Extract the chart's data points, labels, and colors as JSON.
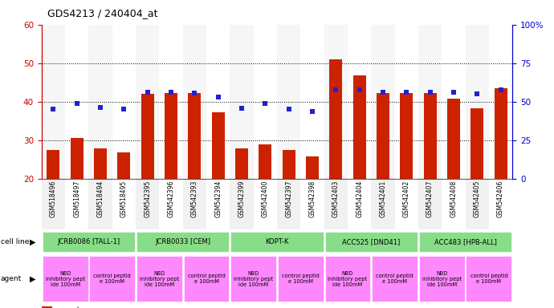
{
  "title": "GDS4213 / 240404_at",
  "samples": [
    "GSM518496",
    "GSM518497",
    "GSM518494",
    "GSM518495",
    "GSM542395",
    "GSM542396",
    "GSM542393",
    "GSM542394",
    "GSM542399",
    "GSM542400",
    "GSM542397",
    "GSM542398",
    "GSM542403",
    "GSM542404",
    "GSM542401",
    "GSM542402",
    "GSM542407",
    "GSM542408",
    "GSM542405",
    "GSM542406"
  ],
  "counts": [
    27.5,
    30.5,
    27.8,
    26.8,
    42.0,
    42.2,
    42.2,
    37.2,
    27.8,
    29.0,
    27.5,
    25.8,
    51.0,
    46.8,
    42.2,
    42.2,
    42.2,
    40.8,
    38.2,
    43.5
  ],
  "percentiles": [
    38.0,
    39.5,
    38.5,
    38.0,
    42.5,
    42.5,
    42.2,
    41.2,
    38.2,
    39.5,
    38.0,
    37.5,
    43.0,
    43.0,
    42.5,
    42.5,
    42.5,
    42.5,
    42.0,
    43.0
  ],
  "bar_color": "#cc2200",
  "dot_color": "#2222cc",
  "ylim_left": [
    20,
    60
  ],
  "ylim_right": [
    0,
    100
  ],
  "yticks_left": [
    20,
    30,
    40,
    50,
    60
  ],
  "yticks_right": [
    0,
    25,
    50,
    75,
    100
  ],
  "ytick_labels_right": [
    "0",
    "25",
    "50",
    "75",
    "100%"
  ],
  "cell_lines": [
    {
      "label": "JCRB0086 [TALL-1]",
      "start": 0,
      "end": 4,
      "color": "#88dd88"
    },
    {
      "label": "JCRB0033 [CEM]",
      "start": 4,
      "end": 8,
      "color": "#88dd88"
    },
    {
      "label": "KOPT-K",
      "start": 8,
      "end": 12,
      "color": "#88dd88"
    },
    {
      "label": "ACC525 [DND41]",
      "start": 12,
      "end": 16,
      "color": "#88dd88"
    },
    {
      "label": "ACC483 [HPB-ALL]",
      "start": 16,
      "end": 20,
      "color": "#88dd88"
    }
  ],
  "agents": [
    {
      "label": "NBD\ninhibitory pept\nide 100mM",
      "start": 0,
      "end": 2,
      "color": "#ff88ff"
    },
    {
      "label": "control peptid\ne 100mM",
      "start": 2,
      "end": 4,
      "color": "#ff88ff"
    },
    {
      "label": "NBD\ninhibitory pept\nide 100mM",
      "start": 4,
      "end": 6,
      "color": "#ff88ff"
    },
    {
      "label": "control peptid\ne 100mM",
      "start": 6,
      "end": 8,
      "color": "#ff88ff"
    },
    {
      "label": "NBD\ninhibitory pept\nide 100mM",
      "start": 8,
      "end": 10,
      "color": "#ff88ff"
    },
    {
      "label": "control peptid\ne 100mM",
      "start": 10,
      "end": 12,
      "color": "#ff88ff"
    },
    {
      "label": "NBD\ninhibitory pept\nide 100mM",
      "start": 12,
      "end": 14,
      "color": "#ff88ff"
    },
    {
      "label": "control peptid\ne 100mM",
      "start": 14,
      "end": 16,
      "color": "#ff88ff"
    },
    {
      "label": "NBD\ninhibitory pept\nide 100mM",
      "start": 16,
      "end": 18,
      "color": "#ff88ff"
    },
    {
      "label": "control peptid\ne 100mM",
      "start": 18,
      "end": 20,
      "color": "#ff88ff"
    }
  ],
  "axis_color_left": "#cc0000",
  "axis_color_right": "#0000cc",
  "hgrid_lines": [
    30,
    40,
    50
  ],
  "xtick_bg_colors": [
    "#dddddd",
    "#ffffff"
  ]
}
